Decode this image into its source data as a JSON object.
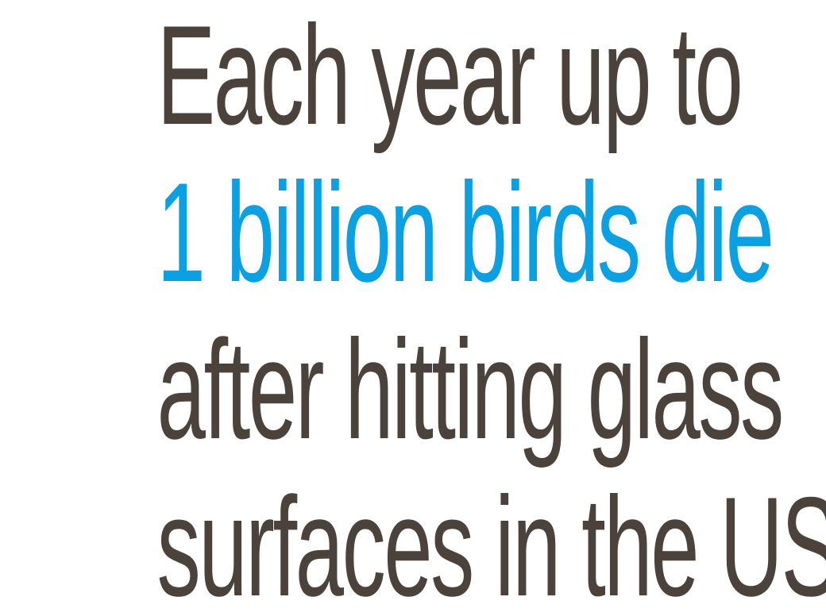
{
  "statement": {
    "lines": [
      {
        "text": "Each year up to",
        "color": "#4a423b"
      },
      {
        "text": "1 billion birds die",
        "color": "#0aa0e2"
      },
      {
        "text": "after hitting glass",
        "color": "#4a423b"
      },
      {
        "text": "surfaces in the US.",
        "color": "#4a423b"
      }
    ]
  }
}
